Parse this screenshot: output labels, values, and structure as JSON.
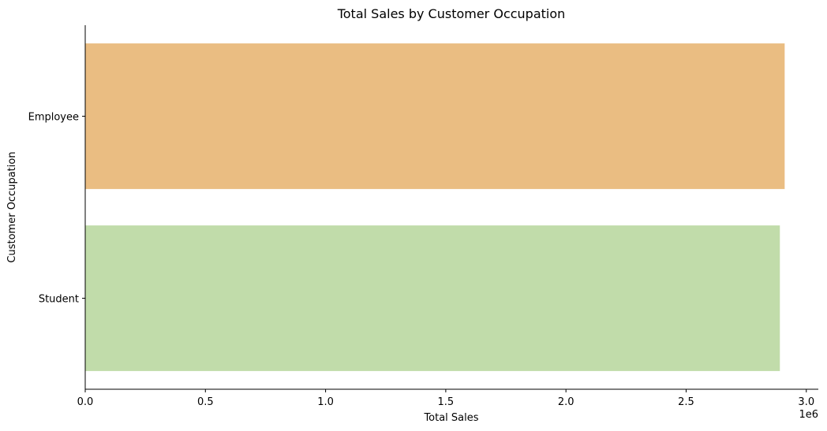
{
  "chart_data": {
    "type": "bar",
    "orientation": "horizontal",
    "title": "Total Sales by Customer Occupation",
    "xlabel": "Total Sales",
    "ylabel": "Customer Occupation",
    "x_scale_label": "1e6",
    "xlim": [
      0,
      3.05
    ],
    "xticks": [
      {
        "value": 0.0,
        "label": "0.0"
      },
      {
        "value": 0.5,
        "label": "0.5"
      },
      {
        "value": 1.0,
        "label": "1.0"
      },
      {
        "value": 1.5,
        "label": "1.5"
      },
      {
        "value": 2.0,
        "label": "2.0"
      },
      {
        "value": 2.5,
        "label": "2.5"
      },
      {
        "value": 3.0,
        "label": "3.0"
      }
    ],
    "grid": false,
    "categories": [
      "Employee",
      "Student"
    ],
    "values": [
      2.91,
      2.89
    ],
    "colors": [
      "#eabd82",
      "#c1dcaa"
    ]
  }
}
